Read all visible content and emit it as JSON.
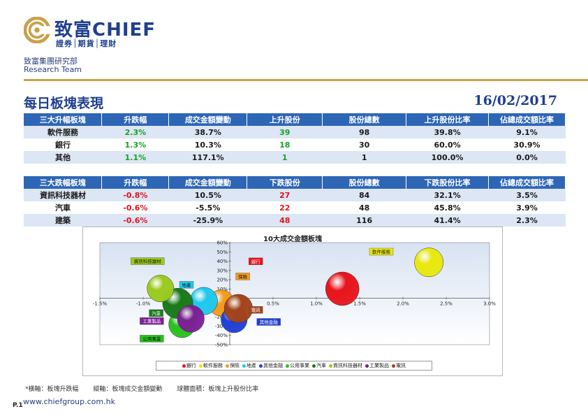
{
  "header": {
    "brand_cn": "致富",
    "brand_en": "CHIEF",
    "tagline": "證券│期貨│理財",
    "dept": "致富集團研究部",
    "team": "Research Team"
  },
  "page": {
    "title": "每日板塊表現",
    "date": "16/02/2017"
  },
  "up_table": {
    "headers": [
      "三大升幅板塊",
      "升跌幅",
      "成交金額變動",
      "上升股份",
      "股份總數",
      "上升股份比率",
      "佔總成交額比率"
    ],
    "rows": [
      [
        "軟件服務",
        "2.3%",
        "38.7%",
        "39",
        "98",
        "39.8%",
        "9.1%"
      ],
      [
        "銀行",
        "1.3%",
        "10.3%",
        "18",
        "30",
        "60.0%",
        "30.9%"
      ],
      [
        "其他",
        "1.1%",
        "117.1%",
        "1",
        "1",
        "100.0%",
        "0.0%"
      ]
    ]
  },
  "down_table": {
    "headers": [
      "三大跌幅板塊",
      "升跌幅",
      "成交金額變動",
      "下跌股份",
      "股份總數",
      "下跌股份比率",
      "佔總成交額比率"
    ],
    "rows": [
      [
        "資訊科技器材",
        "-0.8%",
        "10.5%",
        "27",
        "84",
        "32.1%",
        "3.5%"
      ],
      [
        "汽車",
        "-0.6%",
        "-5.5%",
        "22",
        "48",
        "45.8%",
        "3.9%"
      ],
      [
        "建築",
        "-0.6%",
        "-25.9%",
        "48",
        "116",
        "41.4%",
        "2.3%"
      ]
    ]
  },
  "colors": {
    "header_bg": "#2e66b6",
    "row_alt": "#dce6f4",
    "green": "#17a126",
    "red": "#e0141e",
    "gold": "#c9a14a",
    "navy": "#1f3f8f"
  },
  "chart_data": {
    "type": "scatter",
    "title": "10大成交金額板塊",
    "xlabel": "",
    "ylabel": "",
    "xlim": [
      -1.5,
      3.0
    ],
    "ylim": [
      -50,
      60
    ],
    "x_ticks": [
      "-1.5%",
      "-1.0%",
      "-0.5%",
      "0.0%",
      "0.5%",
      "1.0%",
      "1.5%",
      "2.0%",
      "2.5%",
      "3.0%"
    ],
    "y_ticks": [
      "60%",
      "50%",
      "40%",
      "30%",
      "20%",
      "10%",
      "0%",
      "-10%",
      "-20%",
      "-30%",
      "-40%",
      "-50%"
    ],
    "grid": false,
    "legend_position": "bottom",
    "series": [
      {
        "name": "銀行",
        "x": 1.3,
        "y": 10.3,
        "size": 60.0,
        "color": "#e8141c",
        "label_offset": [
          -1.0,
          28
        ]
      },
      {
        "name": "軟件服務",
        "x": 2.3,
        "y": 38.7,
        "size": 39.8,
        "color": "#e8e80c",
        "label_offset": [
          -0.55,
          10
        ]
      },
      {
        "name": "保險",
        "x": -0.1,
        "y": -5.0,
        "size": 30.0,
        "color": "#f59a1a",
        "label_offset": [
          0.25,
          27
        ]
      },
      {
        "name": "地產",
        "x": -0.3,
        "y": -3.0,
        "size": 35.0,
        "color": "#1ec9ee",
        "label_offset": [
          -0.2,
          16
        ]
      },
      {
        "name": "其他金融",
        "x": 0.05,
        "y": -23.0,
        "size": 30.0,
        "color": "#1f3fd6",
        "label_offset": [
          0.4,
          -4
        ]
      },
      {
        "name": "公用事業",
        "x": -0.55,
        "y": -28.0,
        "size": 32.0,
        "color": "#28c11e",
        "label_offset": [
          -0.35,
          -17
        ]
      },
      {
        "name": "汽車",
        "x": -0.6,
        "y": -5.5,
        "size": 45.8,
        "color": "#1a7a1a",
        "label_offset": [
          -0.25,
          -12
        ]
      },
      {
        "name": "資訊科技器材",
        "x": -0.8,
        "y": 10.5,
        "size": 32.1,
        "color": "#9acb1e",
        "label_offset": [
          -0.15,
          28
        ]
      },
      {
        "name": "工業製品",
        "x": -0.45,
        "y": -22.0,
        "size": 33.0,
        "color": "#7d1f96",
        "label_offset": [
          -0.45,
          -4
        ]
      },
      {
        "name": "電訊",
        "x": 0.1,
        "y": -11.0,
        "size": 38.0,
        "color": "#a3431a",
        "label_offset": [
          0.2,
          -3
        ]
      }
    ]
  },
  "footer": {
    "note_x": "*橫軸：板塊升跌幅",
    "note_y": "縱軸：板塊成交金額變動",
    "note_size": "球體面積：板塊上升股份比率",
    "page_no": "P.1",
    "website": "www.chiefgroup.com.hk"
  }
}
